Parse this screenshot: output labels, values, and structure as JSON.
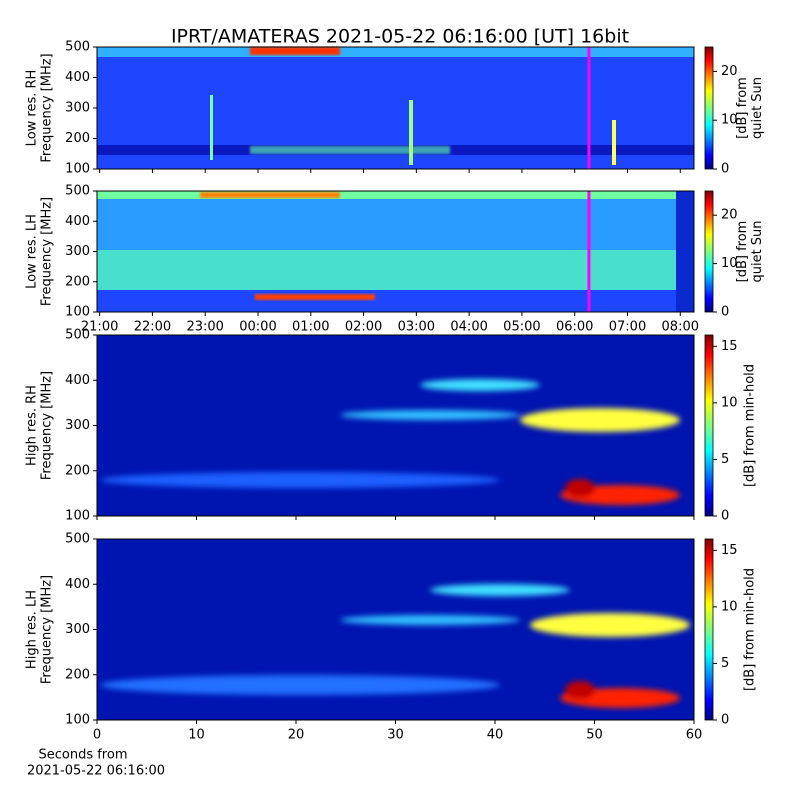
{
  "chart_data": [
    {
      "type": "spectrogram",
      "title": "IPRT/AMATERAS 2021-05-22 06:16:00 [UT]   16bit",
      "ylabel": [
        "Low res. RH",
        "Frequency [MHz]"
      ],
      "ylim": [
        100,
        500
      ],
      "yticks": [
        100,
        200,
        300,
        400,
        500
      ],
      "xlim": [
        20.95,
        32.26
      ],
      "xticks": [
        21,
        22,
        23,
        24,
        25,
        26,
        27,
        28,
        29,
        30,
        31,
        32
      ],
      "xtick_labels": false,
      "marker": 30.27,
      "marker_color": "#ff00ff",
      "clabel": [
        "[dB] from",
        "quiet Sun"
      ],
      "clim": [
        0,
        25
      ],
      "cticks": [
        0,
        10,
        20
      ]
    },
    {
      "type": "spectrogram",
      "ylabel": [
        "Low res. LH",
        "Frequency [MHz]"
      ],
      "ylim": [
        100,
        500
      ],
      "yticks": [
        100,
        200,
        300,
        400,
        500
      ],
      "xlim": [
        20.95,
        32.26
      ],
      "xticks": [
        {
          "value": 21,
          "label": "21:00"
        },
        {
          "value": 22,
          "label": "22:00"
        },
        {
          "value": 23,
          "label": "23:00"
        },
        {
          "value": 24,
          "label": "00:00"
        },
        {
          "value": 25,
          "label": "01:00"
        },
        {
          "value": 26,
          "label": "02:00"
        },
        {
          "value": 27,
          "label": "03:00"
        },
        {
          "value": 28,
          "label": "04:00"
        },
        {
          "value": 29,
          "label": "05:00"
        },
        {
          "value": 30,
          "label": "06:00"
        },
        {
          "value": 31,
          "label": "07:00"
        },
        {
          "value": 32,
          "label": "08:00"
        }
      ],
      "xtick_labels": true,
      "marker": 30.27,
      "marker_color": "#ff00ff",
      "clabel": [
        "[dB] from",
        "quiet Sun"
      ],
      "clim": [
        0,
        25
      ],
      "cticks": [
        0,
        10,
        20
      ]
    },
    {
      "type": "spectrogram",
      "ylabel": [
        "High res. RH",
        "Frequency [MHz]"
      ],
      "ylim": [
        100,
        500
      ],
      "yticks": [
        100,
        200,
        300,
        400,
        500
      ],
      "xlim": [
        0,
        60
      ],
      "xticks": [
        0,
        10,
        20,
        30,
        40,
        50,
        60
      ],
      "xtick_labels": false,
      "clabel": [
        "[dB] from min-hold"
      ],
      "clim": [
        0,
        16
      ],
      "cticks": [
        0,
        5,
        10,
        15
      ]
    },
    {
      "type": "spectrogram",
      "ylabel": [
        "High res. LH",
        "Frequency [MHz]"
      ],
      "ylim": [
        100,
        500
      ],
      "yticks": [
        100,
        200,
        300,
        400,
        500
      ],
      "xlim": [
        0,
        60
      ],
      "xticks": [
        0,
        10,
        20,
        30,
        40,
        50,
        60
      ],
      "xtick_labels": true,
      "xlabel": [
        "Seconds from",
        "2021-05-22 06:16:00"
      ],
      "clabel": [
        "[dB] from min-hold"
      ],
      "clim": [
        0,
        16
      ],
      "cticks": [
        0,
        5,
        10,
        15
      ]
    }
  ]
}
